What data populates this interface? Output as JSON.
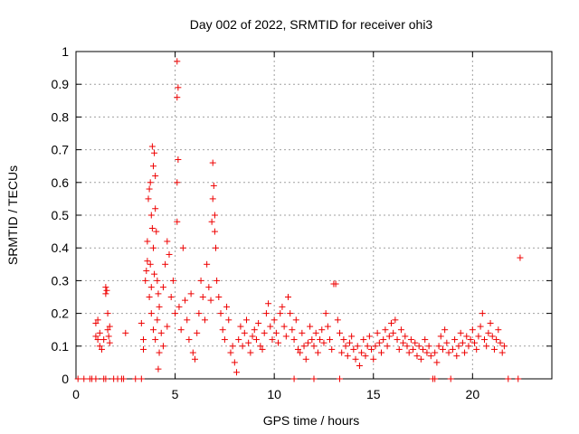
{
  "chart_data": {
    "type": "scatter",
    "title": "Day 002 of 2022, SRMTID for receiver ohi3",
    "xlabel": "GPS time / hours",
    "ylabel": "SRMTID / TECUs",
    "xlim": [
      0,
      24
    ],
    "ylim": [
      0,
      1
    ],
    "xticks": [
      "0",
      "5",
      "10",
      "15",
      "20"
    ],
    "xtick_values": [
      0,
      5,
      10,
      15,
      20
    ],
    "yticks": [
      "0",
      "0.1",
      "0.2",
      "0.3",
      "0.4",
      "0.5",
      "0.6",
      "0.7",
      "0.8",
      "0.9",
      "1"
    ],
    "ytick_values": [
      0,
      0.1,
      0.2,
      0.3,
      0.4,
      0.5,
      0.6,
      0.7,
      0.8,
      0.9,
      1
    ],
    "grid": true,
    "marker": "+",
    "color": "#ee0000",
    "series": [
      {
        "name": "SRMTID",
        "points": [
          [
            0.1,
            0
          ],
          [
            0.4,
            0
          ],
          [
            0.7,
            0
          ],
          [
            0.8,
            0
          ],
          [
            1.0,
            0
          ],
          [
            1.4,
            0
          ],
          [
            1.5,
            0
          ],
          [
            1.9,
            0
          ],
          [
            2.1,
            0
          ],
          [
            2.3,
            0
          ],
          [
            2.4,
            0
          ],
          [
            3.0,
            0
          ],
          [
            3.3,
            0
          ],
          [
            11.0,
            0
          ],
          [
            12.0,
            0
          ],
          [
            13.3,
            0
          ],
          [
            18.0,
            0
          ],
          [
            18.1,
            0
          ],
          [
            18.9,
            0
          ],
          [
            21.8,
            0
          ],
          [
            22.3,
            0
          ],
          [
            1.0,
            0.13
          ],
          [
            1.0,
            0.17
          ],
          [
            1.1,
            0.12
          ],
          [
            1.1,
            0.18
          ],
          [
            1.2,
            0.1
          ],
          [
            1.2,
            0.14
          ],
          [
            1.3,
            0.09
          ],
          [
            1.4,
            0.12
          ],
          [
            1.5,
            0.26
          ],
          [
            1.5,
            0.28
          ],
          [
            1.55,
            0.27
          ],
          [
            1.6,
            0.2
          ],
          [
            1.6,
            0.15
          ],
          [
            1.65,
            0.13
          ],
          [
            1.7,
            0.11
          ],
          [
            1.7,
            0.16
          ],
          [
            2.5,
            0.14
          ],
          [
            3.3,
            0.17
          ],
          [
            3.4,
            0.12
          ],
          [
            3.4,
            0.09
          ],
          [
            3.5,
            0.3
          ],
          [
            3.55,
            0.33
          ],
          [
            3.6,
            0.36
          ],
          [
            3.6,
            0.42
          ],
          [
            3.65,
            0.55
          ],
          [
            3.7,
            0.58
          ],
          [
            3.75,
            0.6
          ],
          [
            3.8,
            0.5
          ],
          [
            3.85,
            0.71
          ],
          [
            3.9,
            0.65
          ],
          [
            3.95,
            0.69
          ],
          [
            4.0,
            0.62
          ],
          [
            3.7,
            0.25
          ],
          [
            3.75,
            0.35
          ],
          [
            3.8,
            0.28
          ],
          [
            3.85,
            0.46
          ],
          [
            3.9,
            0.4
          ],
          [
            3.95,
            0.32
          ],
          [
            4.0,
            0.52
          ],
          [
            4.05,
            0.45
          ],
          [
            4.1,
            0.3
          ],
          [
            4.15,
            0.26
          ],
          [
            3.8,
            0.2
          ],
          [
            3.9,
            0.15
          ],
          [
            4.0,
            0.12
          ],
          [
            4.1,
            0.18
          ],
          [
            4.2,
            0.22
          ],
          [
            4.3,
            0.14
          ],
          [
            4.4,
            0.28
          ],
          [
            4.5,
            0.35
          ],
          [
            4.6,
            0.42
          ],
          [
            4.7,
            0.38
          ],
          [
            4.2,
            0.08
          ],
          [
            4.4,
            0.1
          ],
          [
            4.6,
            0.16
          ],
          [
            4.8,
            0.25
          ],
          [
            4.9,
            0.3
          ],
          [
            5.0,
            0.2
          ],
          [
            5.1,
            0.6
          ],
          [
            5.1,
            0.48
          ],
          [
            5.15,
            0.67
          ],
          [
            5.1,
            0.97
          ],
          [
            5.15,
            0.89
          ],
          [
            5.1,
            0.86
          ],
          [
            4.15,
            0.03
          ],
          [
            5.2,
            0.22
          ],
          [
            5.3,
            0.15
          ],
          [
            5.4,
            0.4
          ],
          [
            5.5,
            0.24
          ],
          [
            5.6,
            0.18
          ],
          [
            5.7,
            0.12
          ],
          [
            5.8,
            0.26
          ],
          [
            5.9,
            0.08
          ],
          [
            6.0,
            0.06
          ],
          [
            6.1,
            0.14
          ],
          [
            6.2,
            0.2
          ],
          [
            6.3,
            0.3
          ],
          [
            6.4,
            0.25
          ],
          [
            6.5,
            0.18
          ],
          [
            6.6,
            0.35
          ],
          [
            6.7,
            0.28
          ],
          [
            6.8,
            0.24
          ],
          [
            6.9,
            0.66
          ],
          [
            6.95,
            0.59
          ],
          [
            6.9,
            0.55
          ],
          [
            7.0,
            0.5
          ],
          [
            7.0,
            0.45
          ],
          [
            7.05,
            0.4
          ],
          [
            6.85,
            0.48
          ],
          [
            7.1,
            0.3
          ],
          [
            7.2,
            0.25
          ],
          [
            7.3,
            0.2
          ],
          [
            7.4,
            0.15
          ],
          [
            7.5,
            0.12
          ],
          [
            7.6,
            0.22
          ],
          [
            7.7,
            0.18
          ],
          [
            7.8,
            0.08
          ],
          [
            7.9,
            0.1
          ],
          [
            8.0,
            0.05
          ],
          [
            8.1,
            0.02
          ],
          [
            8.2,
            0.12
          ],
          [
            8.3,
            0.16
          ],
          [
            8.4,
            0.1
          ],
          [
            8.5,
            0.14
          ],
          [
            8.6,
            0.18
          ],
          [
            8.7,
            0.11
          ],
          [
            8.8,
            0.08
          ],
          [
            8.9,
            0.13
          ],
          [
            9.0,
            0.15
          ],
          [
            9.1,
            0.12
          ],
          [
            9.2,
            0.17
          ],
          [
            9.3,
            0.1
          ],
          [
            9.4,
            0.09
          ],
          [
            9.5,
            0.14
          ],
          [
            9.6,
            0.2
          ],
          [
            9.7,
            0.23
          ],
          [
            9.8,
            0.16
          ],
          [
            9.9,
            0.12
          ],
          [
            10.0,
            0.18
          ],
          [
            10.1,
            0.14
          ],
          [
            10.2,
            0.11
          ],
          [
            10.3,
            0.2
          ],
          [
            10.4,
            0.22
          ],
          [
            10.5,
            0.16
          ],
          [
            10.6,
            0.13
          ],
          [
            10.7,
            0.25
          ],
          [
            10.8,
            0.2
          ],
          [
            10.9,
            0.15
          ],
          [
            11.0,
            0.12
          ],
          [
            11.1,
            0.18
          ],
          [
            11.2,
            0.09
          ],
          [
            11.3,
            0.08
          ],
          [
            11.4,
            0.14
          ],
          [
            11.5,
            0.1
          ],
          [
            11.6,
            0.06
          ],
          [
            11.7,
            0.11
          ],
          [
            11.8,
            0.16
          ],
          [
            11.9,
            0.12
          ],
          [
            12.0,
            0.1
          ],
          [
            12.1,
            0.14
          ],
          [
            12.2,
            0.08
          ],
          [
            12.3,
            0.12
          ],
          [
            12.4,
            0.15
          ],
          [
            12.5,
            0.11
          ],
          [
            12.6,
            0.2
          ],
          [
            12.7,
            0.16
          ],
          [
            12.8,
            0.12
          ],
          [
            12.9,
            0.09
          ],
          [
            13.0,
            0.29
          ],
          [
            13.1,
            0.29
          ],
          [
            13.2,
            0.18
          ],
          [
            13.3,
            0.14
          ],
          [
            13.4,
            0.08
          ],
          [
            13.5,
            0.12
          ],
          [
            13.6,
            0.1
          ],
          [
            13.7,
            0.07
          ],
          [
            13.8,
            0.11
          ],
          [
            13.9,
            0.13
          ],
          [
            14.0,
            0.09
          ],
          [
            14.1,
            0.06
          ],
          [
            14.2,
            0.1
          ],
          [
            14.3,
            0.04
          ],
          [
            14.4,
            0.08
          ],
          [
            14.5,
            0.12
          ],
          [
            14.6,
            0.07
          ],
          [
            14.7,
            0.1
          ],
          [
            14.8,
            0.13
          ],
          [
            14.9,
            0.09
          ],
          [
            15.0,
            0.06
          ],
          [
            15.1,
            0.1
          ],
          [
            15.2,
            0.14
          ],
          [
            15.3,
            0.11
          ],
          [
            15.4,
            0.08
          ],
          [
            15.5,
            0.12
          ],
          [
            15.6,
            0.15
          ],
          [
            15.7,
            0.1
          ],
          [
            15.8,
            0.13
          ],
          [
            15.9,
            0.17
          ],
          [
            16.0,
            0.14
          ],
          [
            16.1,
            0.18
          ],
          [
            16.2,
            0.12
          ],
          [
            16.3,
            0.09
          ],
          [
            16.4,
            0.15
          ],
          [
            16.5,
            0.11
          ],
          [
            16.6,
            0.13
          ],
          [
            16.7,
            0.1
          ],
          [
            16.8,
            0.08
          ],
          [
            16.9,
            0.12
          ],
          [
            17.0,
            0.09
          ],
          [
            17.1,
            0.11
          ],
          [
            17.2,
            0.07
          ],
          [
            17.3,
            0.1
          ],
          [
            17.4,
            0.06
          ],
          [
            17.5,
            0.09
          ],
          [
            17.6,
            0.12
          ],
          [
            17.7,
            0.08
          ],
          [
            17.8,
            0.1
          ],
          [
            17.9,
            0.07
          ],
          [
            18.1,
            0.08
          ],
          [
            18.2,
            0.05
          ],
          [
            18.3,
            0.1
          ],
          [
            18.4,
            0.13
          ],
          [
            18.5,
            0.09
          ],
          [
            18.6,
            0.15
          ],
          [
            18.7,
            0.11
          ],
          [
            18.8,
            0.08
          ],
          [
            19.0,
            0.09
          ],
          [
            19.1,
            0.12
          ],
          [
            19.2,
            0.07
          ],
          [
            19.3,
            0.1
          ],
          [
            19.4,
            0.14
          ],
          [
            19.5,
            0.11
          ],
          [
            19.6,
            0.08
          ],
          [
            19.7,
            0.13
          ],
          [
            19.8,
            0.1
          ],
          [
            19.9,
            0.12
          ],
          [
            20.0,
            0.15
          ],
          [
            20.1,
            0.11
          ],
          [
            20.2,
            0.09
          ],
          [
            20.3,
            0.13
          ],
          [
            20.4,
            0.16
          ],
          [
            20.5,
            0.2
          ],
          [
            20.6,
            0.12
          ],
          [
            20.7,
            0.1
          ],
          [
            20.8,
            0.14
          ],
          [
            20.9,
            0.17
          ],
          [
            21.0,
            0.13
          ],
          [
            21.1,
            0.09
          ],
          [
            21.2,
            0.12
          ],
          [
            21.3,
            0.15
          ],
          [
            21.4,
            0.11
          ],
          [
            21.5,
            0.08
          ],
          [
            21.6,
            0.1
          ],
          [
            22.4,
            0.37
          ]
        ]
      }
    ]
  }
}
